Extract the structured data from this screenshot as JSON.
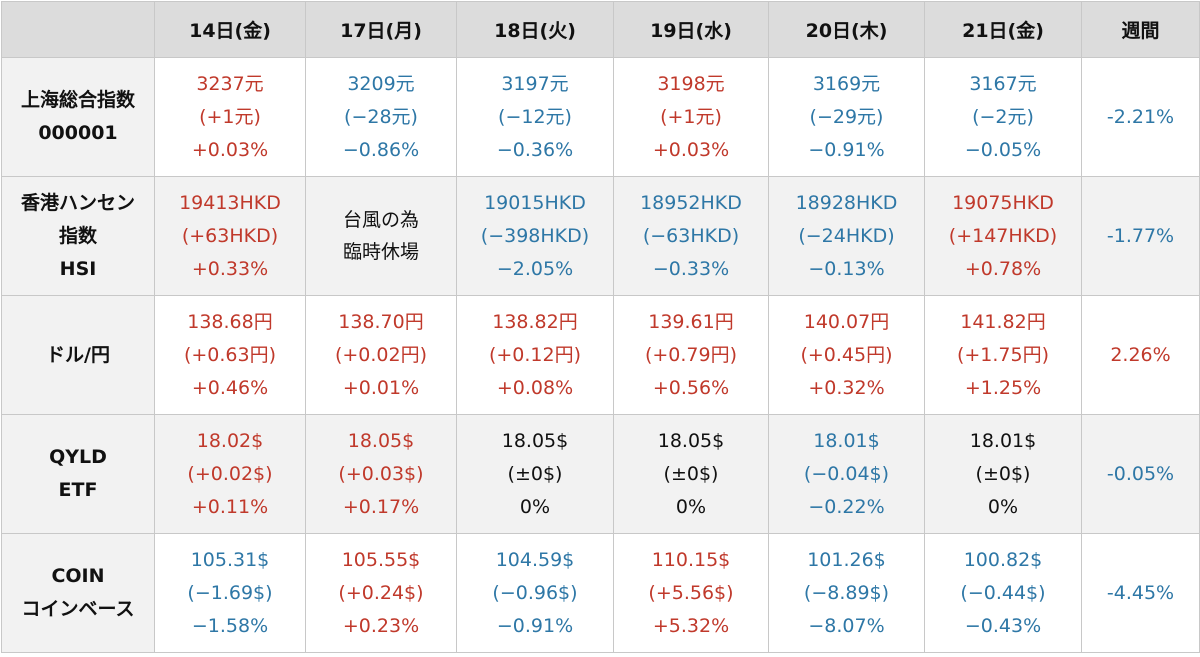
{
  "colors": {
    "up": "#c0392b",
    "down": "#2e77a6",
    "flat": "#111111",
    "header_bg": "#dcdcdc",
    "alt_bg": "#f2f2f2",
    "border": "#c8c8c8"
  },
  "header": {
    "corner": "",
    "days": [
      "14日(金)",
      "17日(月)",
      "18日(火)",
      "19日(水)",
      "20日(木)",
      "21日(金)"
    ],
    "weekly": "週間"
  },
  "rows": [
    {
      "id": "shanghai",
      "label": [
        "上海総合指数",
        "000001"
      ],
      "cells": [
        {
          "lines": [
            "3237元",
            "(+1元)",
            "+0.03%"
          ],
          "dir": "up"
        },
        {
          "lines": [
            "3209元",
            "(−28元)",
            "−0.86%"
          ],
          "dir": "down"
        },
        {
          "lines": [
            "3197元",
            "(−12元)",
            "−0.36%"
          ],
          "dir": "down"
        },
        {
          "lines": [
            "3198元",
            "(+1元)",
            "+0.03%"
          ],
          "dir": "up"
        },
        {
          "lines": [
            "3169元",
            "(−29元)",
            "−0.91%"
          ],
          "dir": "down"
        },
        {
          "lines": [
            "3167元",
            "(−2元)",
            "−0.05%"
          ],
          "dir": "down"
        }
      ],
      "weekly": {
        "value": "-2.21%",
        "dir": "down"
      }
    },
    {
      "id": "hangseng",
      "label": [
        "香港ハンセン",
        "指数",
        "HSI"
      ],
      "cells": [
        {
          "lines": [
            "19413HKD",
            "(+63HKD)",
            "+0.33%"
          ],
          "dir": "up"
        },
        {
          "lines": [
            "台風の為",
            "臨時休場"
          ],
          "dir": "note"
        },
        {
          "lines": [
            "19015HKD",
            "(−398HKD)",
            "−2.05%"
          ],
          "dir": "down"
        },
        {
          "lines": [
            "18952HKD",
            "(−63HKD)",
            "−0.33%"
          ],
          "dir": "down"
        },
        {
          "lines": [
            "18928HKD",
            "(−24HKD)",
            "−0.13%"
          ],
          "dir": "down"
        },
        {
          "lines": [
            "19075HKD",
            "(+147HKD)",
            "+0.78%"
          ],
          "dir": "up"
        }
      ],
      "weekly": {
        "value": "-1.77%",
        "dir": "down"
      }
    },
    {
      "id": "usdjpy",
      "label": [
        "ドル/円"
      ],
      "cells": [
        {
          "lines": [
            "138.68円",
            "(+0.63円)",
            "+0.46%"
          ],
          "dir": "up"
        },
        {
          "lines": [
            "138.70円",
            "(+0.02円)",
            "+0.01%"
          ],
          "dir": "up"
        },
        {
          "lines": [
            "138.82円",
            "(+0.12円)",
            "+0.08%"
          ],
          "dir": "up"
        },
        {
          "lines": [
            "139.61円",
            "(+0.79円)",
            "+0.56%"
          ],
          "dir": "up"
        },
        {
          "lines": [
            "140.07円",
            "(+0.45円)",
            "+0.32%"
          ],
          "dir": "up"
        },
        {
          "lines": [
            "141.82円",
            "(+1.75円)",
            "+1.25%"
          ],
          "dir": "up"
        }
      ],
      "weekly": {
        "value": "2.26%",
        "dir": "up"
      }
    },
    {
      "id": "qyld",
      "label": [
        "QYLD",
        "ETF"
      ],
      "cells": [
        {
          "lines": [
            "18.02$",
            "(+0.02$)",
            "+0.11%"
          ],
          "dir": "up"
        },
        {
          "lines": [
            "18.05$",
            "(+0.03$)",
            "+0.17%"
          ],
          "dir": "up"
        },
        {
          "lines": [
            "18.05$",
            "(±0$)",
            "0%"
          ],
          "dir": "flat"
        },
        {
          "lines": [
            "18.05$",
            "(±0$)",
            "0%"
          ],
          "dir": "flat"
        },
        {
          "lines": [
            "18.01$",
            "(−0.04$)",
            "−0.22%"
          ],
          "dir": "down"
        },
        {
          "lines": [
            "18.01$",
            "(±0$)",
            "0%"
          ],
          "dir": "flat"
        }
      ],
      "weekly": {
        "value": "-0.05%",
        "dir": "down"
      }
    },
    {
      "id": "coin",
      "label": [
        "COIN",
        "コインベース"
      ],
      "cells": [
        {
          "lines": [
            "105.31$",
            "(−1.69$)",
            "−1.58%"
          ],
          "dir": "down"
        },
        {
          "lines": [
            "105.55$",
            "(+0.24$)",
            "+0.23%"
          ],
          "dir": "up"
        },
        {
          "lines": [
            "104.59$",
            "(−0.96$)",
            "−0.91%"
          ],
          "dir": "down"
        },
        {
          "lines": [
            "110.15$",
            "(+5.56$)",
            "+5.32%"
          ],
          "dir": "up"
        },
        {
          "lines": [
            "101.26$",
            "(−8.89$)",
            "−8.07%"
          ],
          "dir": "down"
        },
        {
          "lines": [
            "100.82$",
            "(−0.44$)",
            "−0.43%"
          ],
          "dir": "down"
        }
      ],
      "weekly": {
        "value": "-4.45%",
        "dir": "down"
      }
    }
  ]
}
